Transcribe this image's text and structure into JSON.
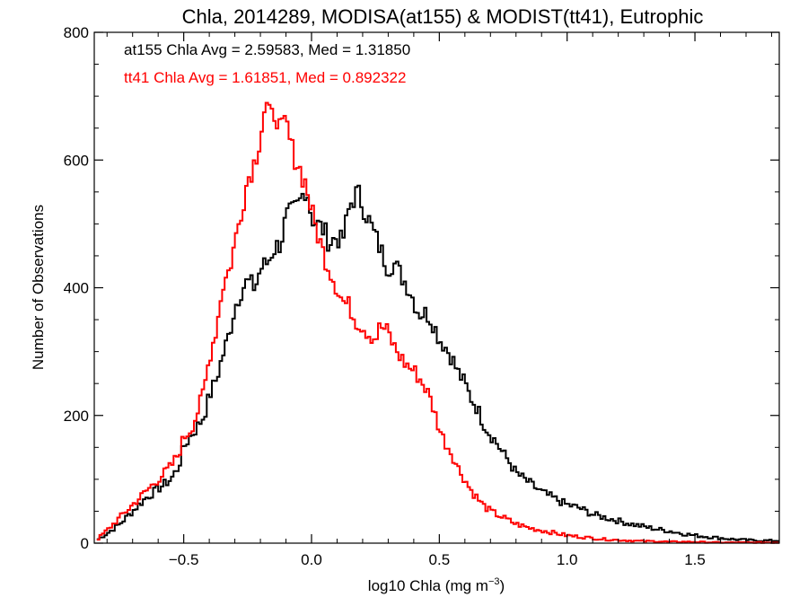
{
  "chart_data": {
    "type": "histogram-step",
    "title": "Chla, 2014289, MODISA(at155) & MODIST(tt41), Eutrophic",
    "xlabel_main": "log10 Chla (mg m",
    "xlabel_sup": "−3",
    "xlabel_close": ")",
    "ylabel": "Number of Observations",
    "xlim": [
      -0.85,
      1.83
    ],
    "ylim": [
      0,
      800
    ],
    "x_ticks": [
      -0.5,
      0.0,
      0.5,
      1.0,
      1.5
    ],
    "x_tick_labels": [
      "−0.5",
      "0.0",
      "0.5",
      "1.0",
      "1.5"
    ],
    "y_ticks": [
      0,
      200,
      400,
      600,
      800
    ],
    "y_tick_labels": [
      "0",
      "200",
      "400",
      "600",
      "800"
    ],
    "annotations": [
      {
        "text": "at155 Chla Avg = 2.59583, Med = 1.31850",
        "color": "#000000"
      },
      {
        "text": "tt41 Chla Avg = 1.61851, Med = 0.892322",
        "color": "#ff0000"
      }
    ],
    "series": [
      {
        "color": "#000000",
        "points": [
          [
            -0.84,
            5
          ],
          [
            -0.8,
            15
          ],
          [
            -0.75,
            30
          ],
          [
            -0.7,
            50
          ],
          [
            -0.65,
            70
          ],
          [
            -0.6,
            85
          ],
          [
            -0.55,
            100
          ],
          [
            -0.52,
            120
          ],
          [
            -0.5,
            150
          ],
          [
            -0.47,
            170
          ],
          [
            -0.45,
            180
          ],
          [
            -0.42,
            200
          ],
          [
            -0.4,
            230
          ],
          [
            -0.37,
            260
          ],
          [
            -0.35,
            290
          ],
          [
            -0.32,
            330
          ],
          [
            -0.3,
            370
          ],
          [
            -0.27,
            400
          ],
          [
            -0.25,
            410
          ],
          [
            -0.22,
            400
          ],
          [
            -0.2,
            430
          ],
          [
            -0.17,
            440
          ],
          [
            -0.15,
            460
          ],
          [
            -0.12,
            470
          ],
          [
            -0.1,
            510
          ],
          [
            -0.07,
            520
          ],
          [
            -0.05,
            530
          ],
          [
            -0.02,
            560
          ],
          [
            0.0,
            510
          ],
          [
            0.02,
            500
          ],
          [
            0.05,
            490
          ],
          [
            0.07,
            470
          ],
          [
            0.1,
            480
          ],
          [
            0.12,
            470
          ],
          [
            0.15,
            530
          ],
          [
            0.18,
            550
          ],
          [
            0.2,
            530
          ],
          [
            0.22,
            510
          ],
          [
            0.25,
            480
          ],
          [
            0.27,
            460
          ],
          [
            0.3,
            430
          ],
          [
            0.32,
            440
          ],
          [
            0.35,
            420
          ],
          [
            0.38,
            400
          ],
          [
            0.4,
            380
          ],
          [
            0.42,
            360
          ],
          [
            0.45,
            360
          ],
          [
            0.47,
            350
          ],
          [
            0.5,
            320
          ],
          [
            0.52,
            310
          ],
          [
            0.55,
            290
          ],
          [
            0.57,
            270
          ],
          [
            0.6,
            250
          ],
          [
            0.62,
            230
          ],
          [
            0.65,
            210
          ],
          [
            0.67,
            190
          ],
          [
            0.7,
            170
          ],
          [
            0.72,
            160
          ],
          [
            0.75,
            140
          ],
          [
            0.77,
            130
          ],
          [
            0.8,
            110
          ],
          [
            0.85,
            95
          ],
          [
            0.9,
            80
          ],
          [
            0.95,
            70
          ],
          [
            1.0,
            60
          ],
          [
            1.05,
            55
          ],
          [
            1.1,
            45
          ],
          [
            1.15,
            40
          ],
          [
            1.2,
            35
          ],
          [
            1.25,
            30
          ],
          [
            1.3,
            26
          ],
          [
            1.35,
            22
          ],
          [
            1.4,
            19
          ],
          [
            1.45,
            15
          ],
          [
            1.5,
            12
          ],
          [
            1.55,
            10
          ],
          [
            1.6,
            8
          ],
          [
            1.65,
            6
          ],
          [
            1.7,
            5
          ],
          [
            1.75,
            4
          ],
          [
            1.8,
            4
          ]
        ]
      },
      {
        "color": "#ff0000",
        "points": [
          [
            -0.84,
            5
          ],
          [
            -0.8,
            20
          ],
          [
            -0.75,
            40
          ],
          [
            -0.7,
            60
          ],
          [
            -0.65,
            80
          ],
          [
            -0.6,
            100
          ],
          [
            -0.55,
            120
          ],
          [
            -0.52,
            140
          ],
          [
            -0.5,
            165
          ],
          [
            -0.47,
            180
          ],
          [
            -0.45,
            200
          ],
          [
            -0.42,
            240
          ],
          [
            -0.4,
            290
          ],
          [
            -0.37,
            340
          ],
          [
            -0.35,
            400
          ],
          [
            -0.32,
            430
          ],
          [
            -0.3,
            470
          ],
          [
            -0.27,
            530
          ],
          [
            -0.25,
            570
          ],
          [
            -0.22,
            600
          ],
          [
            -0.2,
            640
          ],
          [
            -0.18,
            690
          ],
          [
            -0.16,
            660
          ],
          [
            -0.14,
            680
          ],
          [
            -0.12,
            640
          ],
          [
            -0.1,
            660
          ],
          [
            -0.08,
            620
          ],
          [
            -0.05,
            590
          ],
          [
            -0.02,
            560
          ],
          [
            0.0,
            520
          ],
          [
            0.02,
            490
          ],
          [
            0.05,
            450
          ],
          [
            0.07,
            430
          ],
          [
            0.1,
            400
          ],
          [
            0.12,
            380
          ],
          [
            0.15,
            370
          ],
          [
            0.17,
            350
          ],
          [
            0.2,
            340
          ],
          [
            0.22,
            330
          ],
          [
            0.25,
            320
          ],
          [
            0.27,
            340
          ],
          [
            0.3,
            330
          ],
          [
            0.32,
            310
          ],
          [
            0.35,
            290
          ],
          [
            0.37,
            280
          ],
          [
            0.4,
            270
          ],
          [
            0.42,
            260
          ],
          [
            0.45,
            240
          ],
          [
            0.47,
            220
          ],
          [
            0.5,
            180
          ],
          [
            0.52,
            160
          ],
          [
            0.55,
            140
          ],
          [
            0.57,
            120
          ],
          [
            0.6,
            100
          ],
          [
            0.62,
            85
          ],
          [
            0.65,
            70
          ],
          [
            0.67,
            60
          ],
          [
            0.7,
            50
          ],
          [
            0.75,
            40
          ],
          [
            0.8,
            30
          ],
          [
            0.85,
            24
          ],
          [
            0.9,
            20
          ],
          [
            0.95,
            16
          ],
          [
            1.0,
            12
          ],
          [
            1.05,
            10
          ],
          [
            1.1,
            8
          ],
          [
            1.15,
            6
          ],
          [
            1.2,
            5
          ],
          [
            1.25,
            4
          ],
          [
            1.3,
            3
          ],
          [
            1.35,
            3
          ],
          [
            1.4,
            2
          ],
          [
            1.5,
            2
          ],
          [
            1.6,
            1
          ],
          [
            1.7,
            1
          ],
          [
            1.8,
            1
          ]
        ]
      }
    ]
  }
}
